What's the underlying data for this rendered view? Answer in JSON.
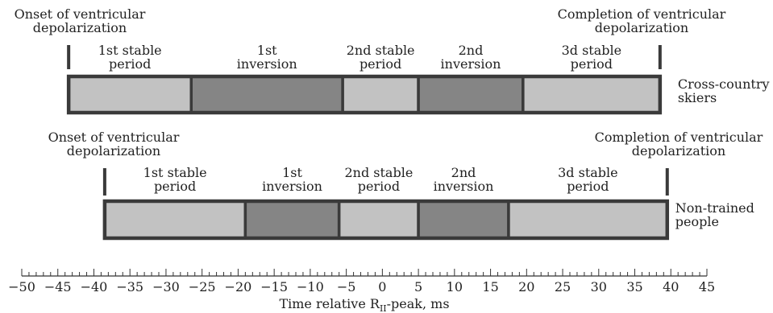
{
  "axis": {
    "title_main": "Time relative R",
    "title_sub": "II",
    "title_tail": "-peak, ms",
    "min": -50,
    "max": 45,
    "major_step": 5,
    "minor_step": 1
  },
  "colors": {
    "stable": "#c2c2c2",
    "inversion": "#858585",
    "frame": "#3a3a3a",
    "text": "#222222"
  },
  "rows": [
    {
      "group_label": [
        "Cross-country",
        "skiers"
      ],
      "onset_label": [
        "Onset of ventricular",
        "depolarization"
      ],
      "completion_label": [
        "Completion of ventricular",
        "depolarization"
      ],
      "onset_ms": -43.5,
      "completion_ms": 38.5,
      "segments": [
        {
          "kind": "stable",
          "label": [
            "1st stable",
            "period"
          ],
          "start": -43.5,
          "end": -26.5
        },
        {
          "kind": "inversion",
          "label": [
            "1st",
            "inversion"
          ],
          "start": -26.5,
          "end": -5.5
        },
        {
          "kind": "stable",
          "label": [
            "2nd stable",
            "period"
          ],
          "start": -5.5,
          "end": 5
        },
        {
          "kind": "inversion",
          "label": [
            "2nd",
            "inversion"
          ],
          "start": 5,
          "end": 19.5
        },
        {
          "kind": "stable",
          "label": [
            "3d stable",
            "period"
          ],
          "start": 19.5,
          "end": 38.5
        }
      ]
    },
    {
      "group_label": [
        "Non-trained",
        "people"
      ],
      "onset_label": [
        "Onset of ventricular",
        "depolarization"
      ],
      "completion_label": [
        "Completion of ventricular",
        "depolarization"
      ],
      "onset_ms": -38.5,
      "completion_ms": 39.5,
      "segments": [
        {
          "kind": "stable",
          "label": [
            "1st stable",
            "period"
          ],
          "start": -38.5,
          "end": -19
        },
        {
          "kind": "inversion",
          "label": [
            "1st",
            "inversion"
          ],
          "start": -19,
          "end": -6
        },
        {
          "kind": "stable",
          "label": [
            "2nd stable",
            "period"
          ],
          "start": -6,
          "end": 5
        },
        {
          "kind": "inversion",
          "label": [
            "2nd",
            "inversion"
          ],
          "start": 5,
          "end": 17.5
        },
        {
          "kind": "stable",
          "label": [
            "3d stable",
            "period"
          ],
          "start": 17.5,
          "end": 39.5
        }
      ]
    }
  ]
}
